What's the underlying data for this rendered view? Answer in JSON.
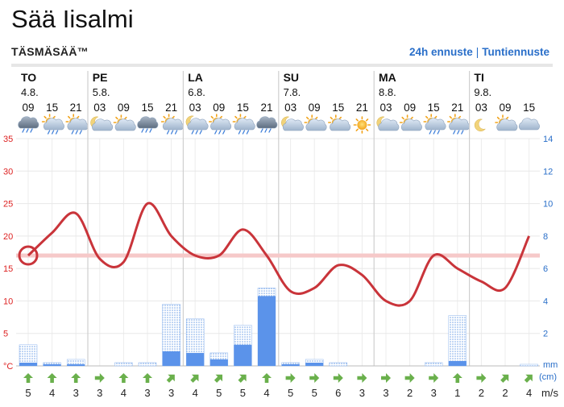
{
  "page": {
    "title": "Sää Iisalmi",
    "subtitle": "TÄSMÄSÄÄ™",
    "link_24h": "24h ennuste",
    "link_separator": "|",
    "link_hourly": "Tuntiennuste"
  },
  "days": [
    {
      "name": "TO",
      "date": "4.8."
    },
    {
      "name": "PE",
      "date": "5.8."
    },
    {
      "name": "LA",
      "date": "6.8."
    },
    {
      "name": "SU",
      "date": "7.8."
    },
    {
      "name": "MA",
      "date": "8.8."
    },
    {
      "name": "TI",
      "date": "9.8."
    }
  ],
  "chart_data": {
    "type": "line",
    "hours": [
      "09",
      "15",
      "21",
      "03",
      "09",
      "15",
      "21",
      "03",
      "09",
      "15",
      "21",
      "03",
      "09",
      "15",
      "21",
      "03",
      "09",
      "15",
      "21",
      "03",
      "09",
      "15"
    ],
    "day_start_index": [
      0,
      3,
      7,
      11,
      15,
      19
    ],
    "weather_icons": [
      "rain-cloud",
      "sun-shower",
      "sun-shower",
      "partly-cloudy-night",
      "sun-cloud",
      "cloud-rain",
      "sun-shower",
      "night-shower",
      "sun-shower",
      "sun-shower",
      "cloud-rain",
      "night-partly-cloudy",
      "sun-cloud",
      "sun-cloud",
      "sun",
      "moon-cloud",
      "sun-cloud",
      "sun-shower",
      "sun-shower",
      "moon",
      "sun-cloud",
      "cloud"
    ],
    "temperature": {
      "unit_label": "°C",
      "ylim": [
        0,
        35
      ],
      "ticks": [
        "35",
        "30",
        "25",
        "20",
        "15",
        "10",
        "5"
      ],
      "values": [
        17,
        20.5,
        23.5,
        16.5,
        16,
        25,
        20,
        17,
        17,
        21,
        17,
        11.5,
        12,
        15.5,
        14,
        10,
        10,
        17,
        15,
        13,
        12,
        20
      ],
      "current": 17,
      "reference": 17
    },
    "precipitation": {
      "unit_label": "mm",
      "unit_label2": "(cm)",
      "ylim": [
        0,
        14
      ],
      "ticks": [
        "14",
        "12",
        "10",
        "8",
        "6",
        "4",
        "2"
      ],
      "values": [
        0.2,
        0.1,
        0.1,
        0,
        0,
        0,
        0.9,
        0.8,
        0.4,
        1.3,
        4.3,
        0.1,
        0.2,
        0,
        0,
        0,
        0,
        0,
        0.3,
        0,
        0,
        0
      ],
      "max_values": [
        1.3,
        0.2,
        0.4,
        0,
        0.2,
        0.2,
        3.8,
        2.9,
        0.8,
        2.5,
        4.8,
        0.2,
        0.4,
        0.2,
        0,
        0,
        0,
        0.2,
        3.1,
        0,
        0,
        0.1
      ]
    },
    "wind": {
      "unit_label": "m/s",
      "speeds": [
        "5",
        "4",
        "3",
        "3",
        "4",
        "3",
        "3",
        "4",
        "5",
        "5",
        "4",
        "5",
        "5",
        "6",
        "3",
        "3",
        "2",
        "3",
        "1",
        "2",
        "2",
        "4"
      ],
      "directions": [
        "up",
        "up",
        "up",
        "right",
        "up",
        "up",
        "up-right",
        "up-right",
        "up-right",
        "up-right",
        "up",
        "right",
        "right",
        "right",
        "right",
        "right",
        "right",
        "right",
        "up",
        "right",
        "up-right",
        "up-right"
      ]
    }
  }
}
